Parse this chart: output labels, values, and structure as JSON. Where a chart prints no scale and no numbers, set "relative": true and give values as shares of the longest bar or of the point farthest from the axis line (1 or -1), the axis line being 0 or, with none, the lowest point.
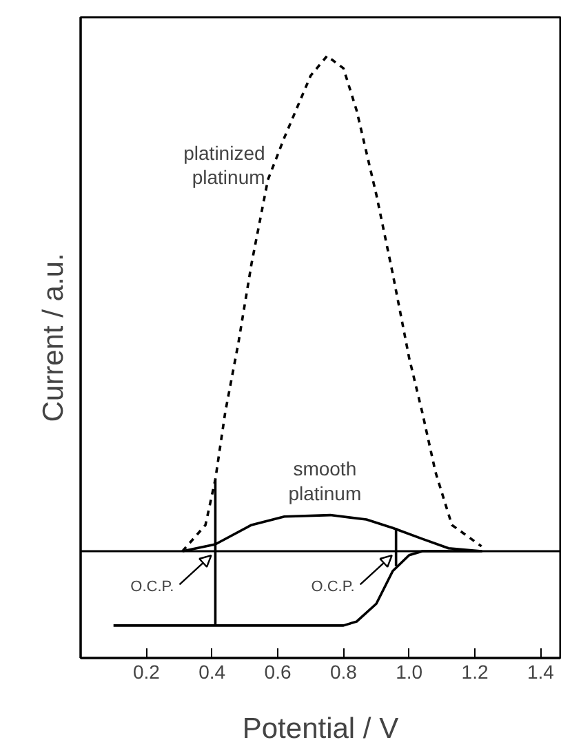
{
  "chart_data": {
    "type": "line",
    "relative": true,
    "xlabel": "Potential / V",
    "ylabel": "Current / a.u.",
    "xlim": [
      0,
      1.46
    ],
    "xticks": [
      0.2,
      0.4,
      0.6,
      0.8,
      {
        "value": 1.0,
        "label": "1.0"
      },
      1.2,
      1.4
    ],
    "grid": false,
    "series": [
      {
        "name": "platinized\nplatinum",
        "color": "#000000",
        "line_style": "dashed",
        "x": [
          0.31,
          0.38,
          0.41,
          0.44,
          0.48,
          0.52,
          0.57,
          0.62,
          0.7,
          0.75,
          0.8,
          0.84,
          0.9,
          0.95,
          1.0,
          1.04,
          1.08,
          1.13,
          1.22
        ],
        "values": [
          0,
          0.053,
          0.145,
          0.28,
          0.42,
          0.58,
          0.75,
          0.835,
          0.96,
          1,
          0.975,
          0.89,
          0.72,
          0.56,
          0.39,
          0.28,
          0.16,
          0.053,
          0.01
        ]
      },
      {
        "name": "smooth\nplatinum",
        "color": "#000000",
        "line_style": "solid",
        "x": [
          0.31,
          0.41,
          0.52,
          0.62,
          0.76,
          0.87,
          0.95,
          1.04,
          1.12,
          1.22,
          1.04,
          1.0,
          0.95,
          0.9,
          0.84,
          0.8,
          0.1
        ],
        "values": [
          0,
          0.014,
          0.053,
          0.07,
          0.073,
          0.064,
          0.047,
          0.025,
          0.006,
          0,
          0,
          -0.008,
          -0.04,
          -0.106,
          -0.142,
          -0.15,
          -0.15
        ]
      },
      {
        "color": "#000000",
        "line_style": "solid",
        "x": [
          0.41,
          0.41
        ],
        "values": [
          0.145,
          -0.15
        ]
      },
      {
        "color": "#000000",
        "line_style": "solid",
        "x": [
          0.96,
          0.96
        ],
        "values": [
          0.047,
          -0.03
        ]
      }
    ],
    "ref_lines": [
      {
        "axis": "y",
        "value": 0,
        "color": "#000000"
      }
    ],
    "annotations": [
      {
        "text": "O.C.P.",
        "x": 0.41,
        "y": 0
      },
      {
        "text": "O.C.P.",
        "x": 0.96,
        "y": 0
      }
    ]
  }
}
